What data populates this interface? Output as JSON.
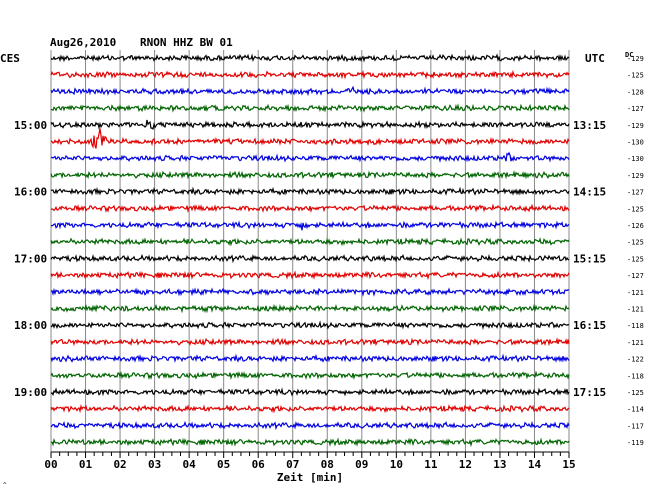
{
  "header": {
    "date": "Aug26,2010",
    "station": "RNON HHZ BW 01",
    "left_tz": "CES",
    "right_tz": "UTC",
    "dc_label": "DC"
  },
  "chart_data": {
    "type": "line",
    "title": "Aug26,2010   RNON HHZ BW 01",
    "xlabel": "Zeit [min]",
    "xlim": [
      0,
      15
    ],
    "x_ticks": [
      "00",
      "01",
      "02",
      "03",
      "04",
      "05",
      "06",
      "07",
      "08",
      "09",
      "10",
      "11",
      "12",
      "13",
      "14",
      "15"
    ],
    "row_count": 24,
    "series_colors": [
      "#000000",
      "#e00000",
      "#0000e0",
      "#006400"
    ],
    "left_hour_labels": [
      {
        "row": 4,
        "text": "15:00"
      },
      {
        "row": 8,
        "text": "16:00"
      },
      {
        "row": 12,
        "text": "17:00"
      },
      {
        "row": 16,
        "text": "18:00"
      },
      {
        "row": 20,
        "text": "19:00"
      }
    ],
    "right_hour_labels": [
      {
        "row": 4,
        "text": "13:15"
      },
      {
        "row": 8,
        "text": "14:15"
      },
      {
        "row": 12,
        "text": "15:15"
      },
      {
        "row": 16,
        "text": "16:15"
      },
      {
        "row": 20,
        "text": "17:15"
      }
    ],
    "dc_offsets": [
      -129,
      -125,
      -128,
      -127,
      -129,
      -130,
      -130,
      -129,
      -127,
      -125,
      -126,
      -125,
      -125,
      -127,
      -121,
      -121,
      -118,
      -121,
      -122,
      -118,
      -125,
      -114,
      -117,
      -119
    ],
    "events": [
      {
        "row": 2,
        "minute": 8.6,
        "amplitude": 1.8
      },
      {
        "row": 4,
        "minute": 2.9,
        "amplitude": 1.4
      },
      {
        "row": 5,
        "minute": 1.4,
        "amplitude": 4.0
      },
      {
        "row": 6,
        "minute": 13.2,
        "amplitude": 1.2
      },
      {
        "row": 10,
        "minute": 7.3,
        "amplitude": 1.2
      }
    ]
  }
}
